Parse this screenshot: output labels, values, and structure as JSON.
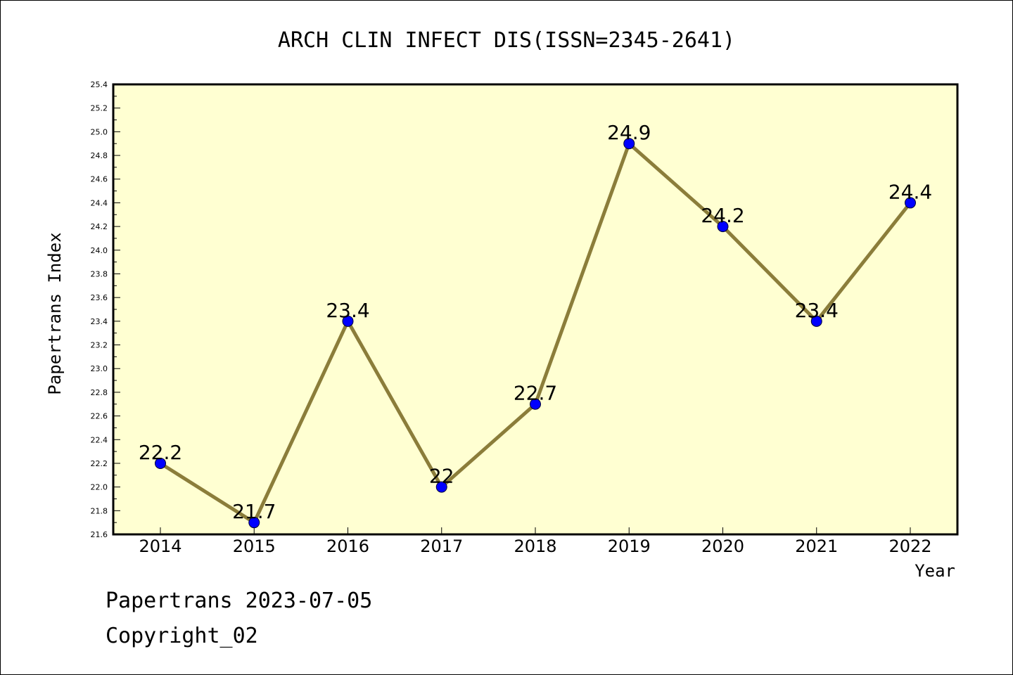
{
  "chart_data": {
    "type": "line",
    "title": "ARCH CLIN INFECT DIS(ISSN=2345-2641)",
    "xlabel": "Year",
    "ylabel": "Papertrans Index",
    "categories": [
      "2014",
      "2015",
      "2016",
      "2017",
      "2018",
      "2019",
      "2020",
      "2021",
      "2022"
    ],
    "values": [
      22.2,
      21.7,
      23.4,
      22.0,
      22.7,
      24.9,
      24.2,
      23.4,
      24.4
    ],
    "data_labels": [
      "22.2",
      "21.7",
      "23.4",
      "22",
      "22.7",
      "24.9",
      "24.2",
      "23.4",
      "24.4"
    ],
    "ylim": [
      21.6,
      25.4
    ],
    "yticks": [
      "21.6",
      "21.8",
      "22.0",
      "22.2",
      "22.4",
      "22.6",
      "22.8",
      "23.0",
      "23.2",
      "23.4",
      "23.6",
      "23.8",
      "24.0",
      "24.2",
      "24.4",
      "24.6",
      "24.8",
      "25.0",
      "25.2",
      "25.4"
    ],
    "grid": false,
    "legend": "none",
    "colors": {
      "line": "#8b7d3a",
      "marker": "#0000ff",
      "plot_background": "#ffffd2",
      "frame": "#000000"
    }
  },
  "footer": {
    "date_line": "Papertrans 2023-07-05",
    "copyright_line": "Copyright_02"
  }
}
